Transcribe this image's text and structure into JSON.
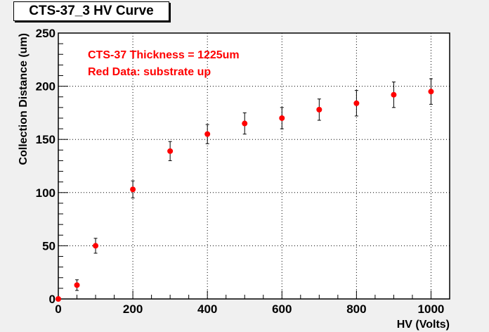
{
  "chart_data": {
    "type": "scatter",
    "title": "CTS-37_3 HV Curve",
    "xlabel": "HV (Volts)",
    "ylabel": "Collection Distance (um)",
    "xlim": [
      0,
      1050
    ],
    "ylim": [
      0,
      250
    ],
    "xticks": [
      0,
      200,
      400,
      600,
      800,
      1000
    ],
    "yticks": [
      0,
      50,
      100,
      150,
      200,
      250
    ],
    "grid": true,
    "annotations": [
      "CTS-37 Thickness = 1225um",
      "Red Data: substrate up"
    ],
    "series": [
      {
        "color": "#ff0000",
        "x": [
          0,
          50,
          100,
          200,
          300,
          400,
          500,
          600,
          700,
          800,
          900,
          1000
        ],
        "y": [
          0,
          13,
          50,
          103,
          139,
          155,
          165,
          170,
          178,
          184,
          192,
          195
        ],
        "yerr": [
          0,
          5,
          7,
          8,
          9,
          9,
          10,
          10,
          10,
          12,
          12,
          12
        ]
      }
    ]
  },
  "colors": {
    "marker": "#ff0000",
    "annotation": "#ff0000",
    "background": "#f0f0f0",
    "plot_area": "#ffffff"
  }
}
